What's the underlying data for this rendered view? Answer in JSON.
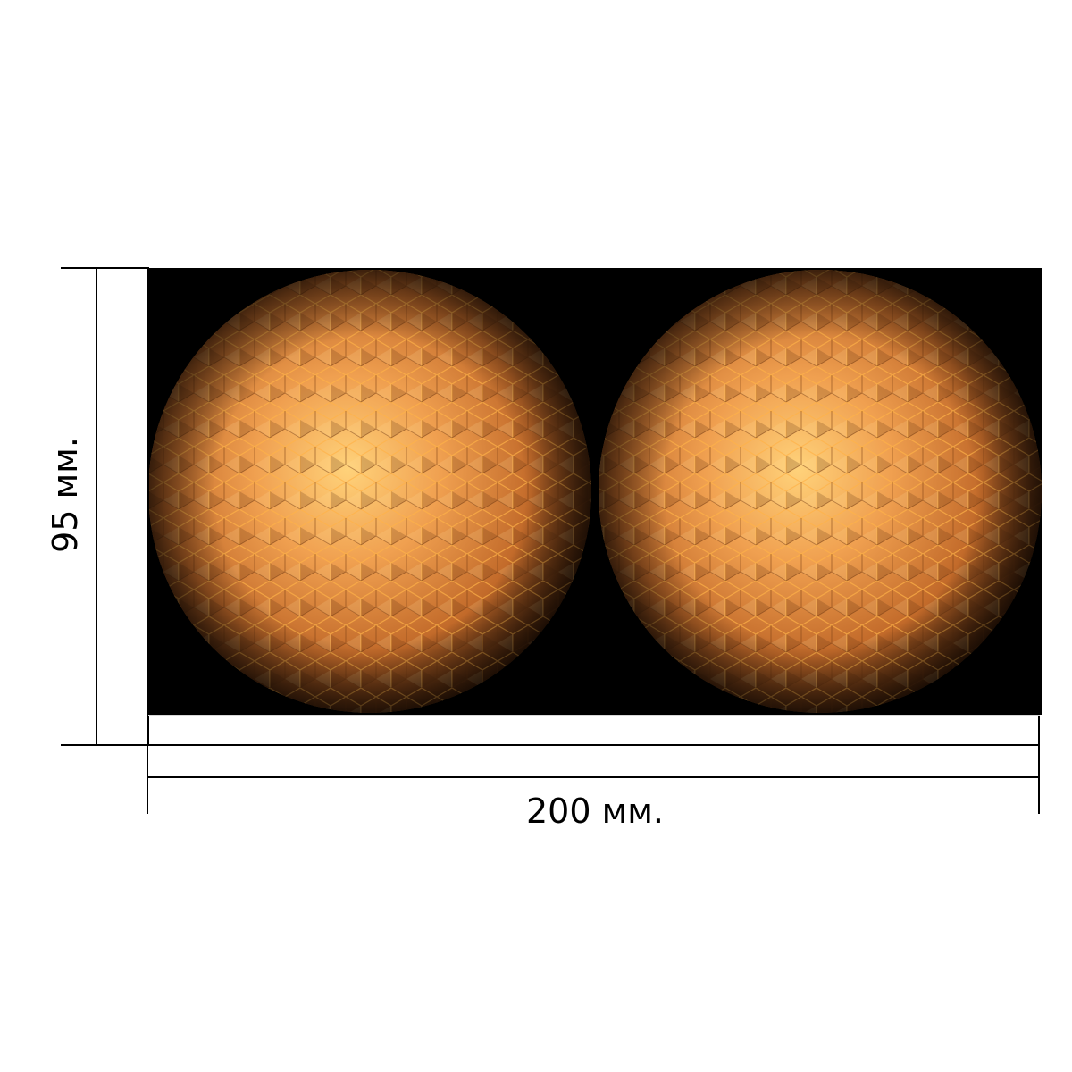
{
  "dimensions": {
    "height_label": "95 мм.",
    "width_label": "200 мм."
  },
  "product": {
    "background_color": "#000000",
    "sphere_count": 2,
    "sphere_colors": {
      "highlight": "#ffd27a",
      "mid": "#e0893e",
      "shadow": "#5a2e0d",
      "facet_line": "#ffb347"
    }
  }
}
